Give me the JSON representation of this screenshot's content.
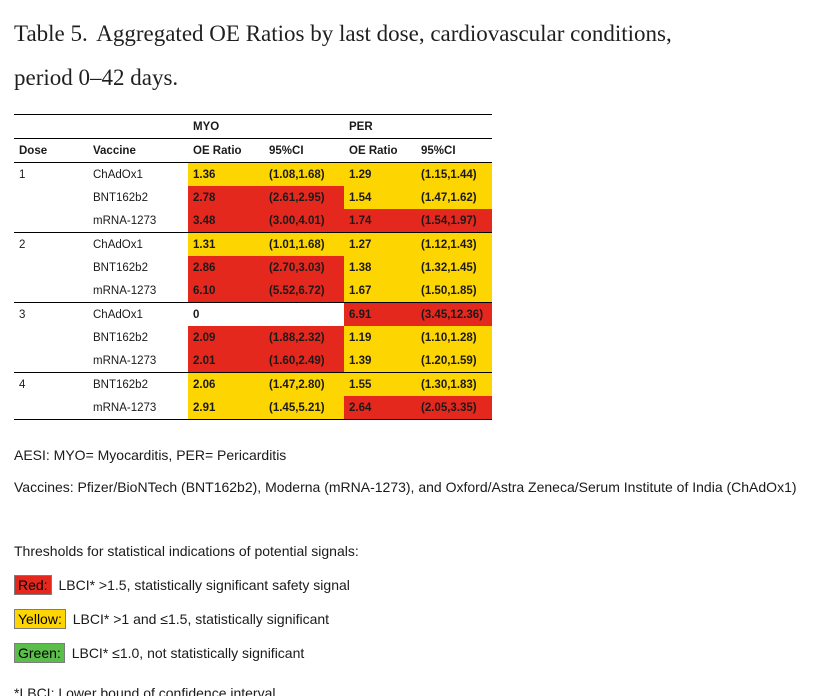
{
  "title": {
    "label": "Table 5.",
    "text": "Aggregated OE Ratios by last dose, cardiovascular conditions, period 0–42 days."
  },
  "colors": {
    "red": "#e5281e",
    "yellow": "#fdd501",
    "green": "#5cbe4a"
  },
  "table": {
    "group_headers": [
      "MYO",
      "PER"
    ],
    "col_headers": [
      "Dose",
      "Vaccine",
      "OE Ratio",
      "95%CI",
      "OE Ratio",
      "95%CI"
    ],
    "rows": [
      {
        "dose": "1",
        "vaccine": "ChAdOx1",
        "group_start": true,
        "cells": [
          {
            "text": "1.36",
            "color": "yellow"
          },
          {
            "text": "(1.08,1.68)",
            "color": "yellow"
          },
          {
            "text": "1.29",
            "color": "yellow"
          },
          {
            "text": "(1.15,1.44)",
            "color": "yellow"
          }
        ]
      },
      {
        "dose": "",
        "vaccine": "BNT162b2",
        "group_start": false,
        "cells": [
          {
            "text": "2.78",
            "color": "red"
          },
          {
            "text": "(2.61,2.95)",
            "color": "red"
          },
          {
            "text": "1.54",
            "color": "yellow"
          },
          {
            "text": "(1.47,1.62)",
            "color": "yellow"
          }
        ]
      },
      {
        "dose": "",
        "vaccine": "mRNA-1273",
        "group_start": false,
        "cells": [
          {
            "text": "3.48",
            "color": "red"
          },
          {
            "text": "(3.00,4.01)",
            "color": "red"
          },
          {
            "text": "1.74",
            "color": "red"
          },
          {
            "text": "(1.54,1.97)",
            "color": "red"
          }
        ]
      },
      {
        "dose": "2",
        "vaccine": "ChAdOx1",
        "group_start": true,
        "cells": [
          {
            "text": "1.31",
            "color": "yellow"
          },
          {
            "text": "(1.01,1.68)",
            "color": "yellow"
          },
          {
            "text": "1.27",
            "color": "yellow"
          },
          {
            "text": "(1.12,1.43)",
            "color": "yellow"
          }
        ]
      },
      {
        "dose": "",
        "vaccine": "BNT162b2",
        "group_start": false,
        "cells": [
          {
            "text": "2.86",
            "color": "red"
          },
          {
            "text": "(2.70,3.03)",
            "color": "red"
          },
          {
            "text": "1.38",
            "color": "yellow"
          },
          {
            "text": "(1.32,1.45)",
            "color": "yellow"
          }
        ]
      },
      {
        "dose": "",
        "vaccine": "mRNA-1273",
        "group_start": false,
        "cells": [
          {
            "text": "6.10",
            "color": "red"
          },
          {
            "text": "(5.52,6.72)",
            "color": "red"
          },
          {
            "text": "1.67",
            "color": "yellow"
          },
          {
            "text": "(1.50,1.85)",
            "color": "yellow"
          }
        ]
      },
      {
        "dose": "3",
        "vaccine": "ChAdOx1",
        "group_start": true,
        "cells": [
          {
            "text": "0",
            "color": "none"
          },
          {
            "text": "",
            "color": "none"
          },
          {
            "text": "6.91",
            "color": "red"
          },
          {
            "text": "(3.45,12.36)",
            "color": "red"
          }
        ]
      },
      {
        "dose": "",
        "vaccine": "BNT162b2",
        "group_start": false,
        "cells": [
          {
            "text": "2.09",
            "color": "red"
          },
          {
            "text": "(1.88,2.32)",
            "color": "red"
          },
          {
            "text": "1.19",
            "color": "yellow"
          },
          {
            "text": "(1.10,1.28)",
            "color": "yellow"
          }
        ]
      },
      {
        "dose": "",
        "vaccine": "mRNA-1273",
        "group_start": false,
        "cells": [
          {
            "text": "2.01",
            "color": "red"
          },
          {
            "text": "(1.60,2.49)",
            "color": "red"
          },
          {
            "text": "1.39",
            "color": "yellow"
          },
          {
            "text": "(1.20,1.59)",
            "color": "yellow"
          }
        ]
      },
      {
        "dose": "4",
        "vaccine": "BNT162b2",
        "group_start": true,
        "cells": [
          {
            "text": "2.06",
            "color": "yellow"
          },
          {
            "text": "(1.47,2.80)",
            "color": "yellow"
          },
          {
            "text": "1.55",
            "color": "yellow"
          },
          {
            "text": "(1.30,1.83)",
            "color": "yellow"
          }
        ]
      },
      {
        "dose": "",
        "vaccine": "mRNA-1273",
        "group_start": false,
        "cells": [
          {
            "text": "2.91",
            "color": "yellow"
          },
          {
            "text": "(1.45,5.21)",
            "color": "yellow"
          },
          {
            "text": "2.64",
            "color": "red"
          },
          {
            "text": "(2.05,3.35)",
            "color": "red"
          }
        ]
      }
    ]
  },
  "footnotes": {
    "aesi": "AESI: MYO= Myocarditis, PER= Pericarditis",
    "vaccines": "Vaccines: Pfizer/BioNTech (BNT162b2), Moderna (mRNA-1273), and Oxford/Astra Zeneca/Serum Institute of India (ChAdOx1)",
    "lbci": "*LBCI: Lower bound of confidence interval"
  },
  "legend": {
    "title": "Thresholds for statistical indications of potential signals:",
    "items": [
      {
        "key": "red",
        "chip": "Red:",
        "text": "LBCI* >1.5, statistically significant safety signal"
      },
      {
        "key": "yellow",
        "chip": "Yellow:",
        "text": "LBCI* >1 and ≤1.5, statistically significant"
      },
      {
        "key": "green",
        "chip": "Green:",
        "text": "LBCI* ≤1.0, not statistically significant"
      }
    ]
  }
}
